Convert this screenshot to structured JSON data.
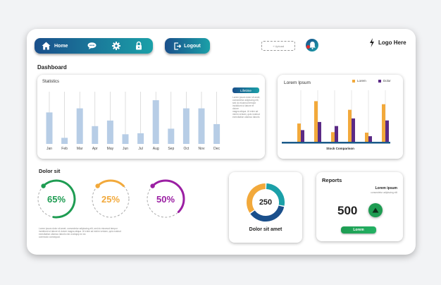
{
  "nav": {
    "home_label": "Home",
    "logout_label": "Logout",
    "upload_label": "+ Upload",
    "brand_text": "Logo Here",
    "icons": [
      "home-icon",
      "chat-icon",
      "gear-icon",
      "lock-icon",
      "logout-icon",
      "notification-icon"
    ]
  },
  "dashboard_title": "Dashboard",
  "statistics": {
    "title": "Statistics",
    "badge": "Lifetime",
    "note_lines": [
      "Lorem ipsum dolor sit amet,",
      "consectetur adipiscing elit,",
      "sed do eiusmod tempor",
      "incididunt ut labore et dolore",
      "magna aliqua. Ut enim ad",
      "minim veniam, quis nostrud",
      "exercitation ullamco laboris"
    ]
  },
  "chart_data": [
    {
      "type": "bar",
      "title": "Statistics",
      "categories": [
        "Jan",
        "Feb",
        "Mar",
        "Apr",
        "May",
        "Jun",
        "Jul",
        "Aug",
        "Sep",
        "Oct",
        "Nov",
        "Dec"
      ],
      "values": [
        62,
        12,
        70,
        35,
        46,
        19,
        21,
        86,
        30,
        70,
        70,
        39
      ],
      "ylim": [
        0,
        100
      ],
      "grid": false,
      "bar_color": "#b7cde6"
    },
    {
      "type": "bar",
      "title": "Lorem Ipsum",
      "xlabel": "Stock Comparison",
      "categories": [
        "",
        "",
        "",
        "",
        "",
        ""
      ],
      "series": [
        {
          "name": "Lorem",
          "values": [
            36,
            80,
            19,
            63,
            18,
            74
          ],
          "color": "#f2a93b"
        },
        {
          "name": "Dolor",
          "values": [
            23,
            39,
            31,
            46,
            11,
            42
          ],
          "color": "#5b2a86"
        }
      ],
      "ylim": [
        0,
        100
      ],
      "legend": "top-right"
    }
  ],
  "lorem_card": {
    "title": "Lorem Ipsum"
  },
  "dolor": {
    "title": "Dolor sit",
    "rings": [
      {
        "label": "65%",
        "value": 0.65,
        "color": "#1e9c52"
      },
      {
        "label": "25%",
        "value": 0.25,
        "color": "#f2a93b"
      },
      {
        "label": "50%",
        "value": 0.5,
        "color": "#9b1fa3"
      }
    ],
    "note_lines": [
      "Lorem ipsum dolor sit amet, consectetur adipiscing elit, sed do eiusmod tempor",
      "incididunt ut labore et dolore magna aliqua. Ut enim ad minim veniam, quis nostrud",
      "exercitation ullamco laboris nisi ut aliquip ex ea",
      "commodo consequat."
    ]
  },
  "donut": {
    "value": "250",
    "label": "Dolor sit amet",
    "segments": [
      {
        "fraction": 0.28,
        "color": "#1ba0a8"
      },
      {
        "fraction": 0.37,
        "color": "#1a4f8b"
      },
      {
        "fraction": 0.35,
        "color": "#f2a93b"
      }
    ]
  },
  "reports": {
    "title": "Reports",
    "subtitle": "Lorem ipsum",
    "subtext": "consectetur adipiscing elit",
    "value": "500",
    "button_label": "Lorem"
  }
}
